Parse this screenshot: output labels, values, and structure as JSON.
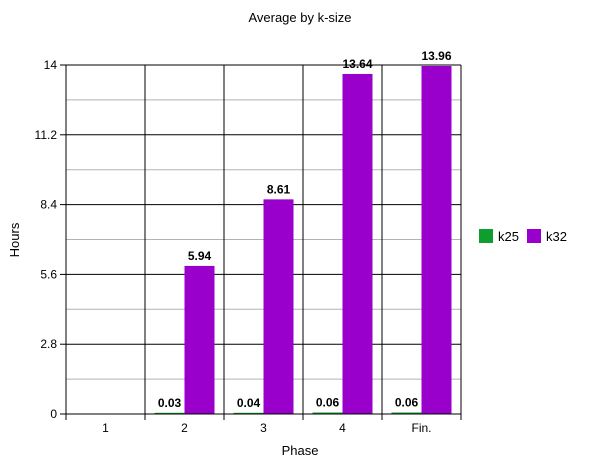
{
  "chart_data": {
    "type": "bar",
    "title": "Average by k-size",
    "xlabel": "Phase",
    "ylabel": "Hours",
    "categories": [
      "1",
      "2",
      "3",
      "4",
      "Fin."
    ],
    "series": [
      {
        "name": "k25",
        "color": "#0f9d2e",
        "values": [
          null,
          0.03,
          0.04,
          0.06,
          0.06
        ],
        "labels": [
          "",
          "0.03",
          "0.04",
          "0.06",
          "0.06"
        ]
      },
      {
        "name": "k32",
        "color": "#9900cc",
        "values": [
          null,
          5.94,
          8.61,
          13.64,
          13.96
        ],
        "labels": [
          "",
          "5.94",
          "8.61",
          "13.64",
          "13.96"
        ]
      }
    ],
    "yticks": [
      "0",
      "2.8",
      "5.6",
      "8.4",
      "11.2",
      "14"
    ],
    "ylim": [
      0,
      14
    ],
    "grid": true,
    "legend": "right"
  }
}
